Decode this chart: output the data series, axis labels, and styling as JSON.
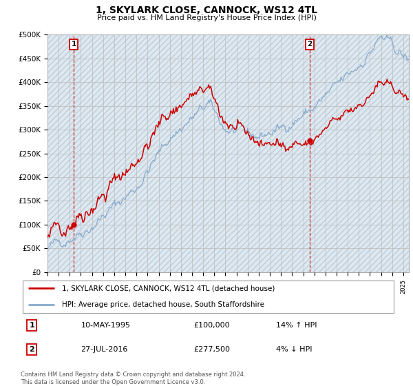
{
  "title": "1, SKYLARK CLOSE, CANNOCK, WS12 4TL",
  "subtitle": "Price paid vs. HM Land Registry's House Price Index (HPI)",
  "ylim": [
    0,
    500000
  ],
  "yticks": [
    0,
    50000,
    100000,
    150000,
    200000,
    250000,
    300000,
    350000,
    400000,
    450000,
    500000
  ],
  "ytick_labels": [
    "£0",
    "£50K",
    "£100K",
    "£150K",
    "£200K",
    "£250K",
    "£300K",
    "£350K",
    "£400K",
    "£450K",
    "£500K"
  ],
  "xlim_start": 1993.0,
  "xlim_end": 2025.5,
  "sale1_date": 1995.36,
  "sale1_price": 100000,
  "sale1_label": "1",
  "sale1_date_str": "10-MAY-1995",
  "sale1_price_str": "£100,000",
  "sale1_hpi_str": "14% ↑ HPI",
  "sale2_date": 2016.57,
  "sale2_price": 277500,
  "sale2_label": "2",
  "sale2_date_str": "27-JUL-2016",
  "sale2_price_str": "£277,500",
  "sale2_hpi_str": "4% ↓ HPI",
  "property_line_color": "#cc0000",
  "hpi_line_color": "#88aacc",
  "vline_color": "#cc0000",
  "marker_color": "#cc0000",
  "label_box_color": "#cc0000",
  "plot_bg_color": "#dde8f0",
  "hatch_color": "#c0cdd8",
  "grid_color": "#bbbbbb",
  "legend_property": "1, SKYLARK CLOSE, CANNOCK, WS12 4TL (detached house)",
  "legend_hpi": "HPI: Average price, detached house, South Staffordshire",
  "footer": "Contains HM Land Registry data © Crown copyright and database right 2024.\nThis data is licensed under the Open Government Licence v3.0."
}
